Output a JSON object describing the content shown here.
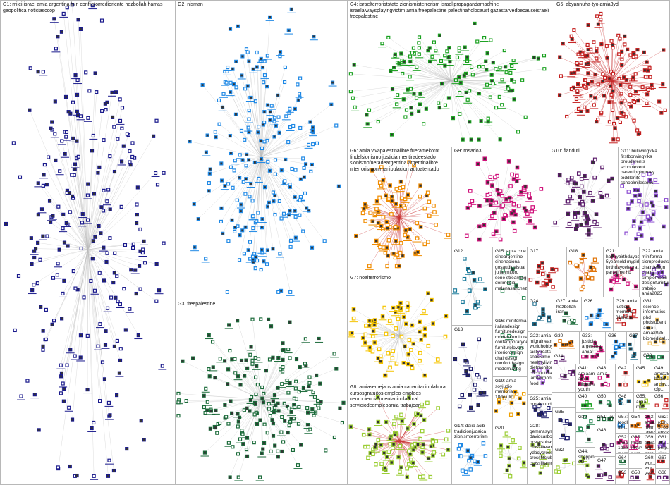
{
  "groups": {
    "G1": {
      "label": "G1: milei israel amia argentina lnln conflictomedioriente hezbollah hamas geopolitica noticiasccop",
      "color": "#1a1a8c",
      "nodes": 260
    },
    "G2": {
      "label": "G2: nisman",
      "color": "#1e88e5",
      "nodes": 230
    },
    "G3": {
      "label": "G3: freepalestine",
      "color": "#1b6b3a",
      "nodes": 200
    },
    "G4": {
      "label": "G4: israelterroriststate zionismisterrorism israelipropagandamachine israelalwaysplayingvictim amia freepalestine palestinaholocaust gazastarvedbecauseisraeli freepalestine",
      "color": "#18a01e",
      "nodes": 140
    },
    "G5": {
      "label": "G5: abyannuha-tyo amia3yd",
      "color": "#c41e1e",
      "nodes": 150
    },
    "G6": {
      "label": "G6: amia vivapalestinalibre fueramekorot findelsionismo justicia mentiradeestado sionismofueradeargentina argentinalibre niterrorismonimanipulacion autoatentado",
      "color": "#f08c00",
      "nodes": 90
    },
    "G7": {
      "label": "G7: noalterrorismo",
      "color": "#f5c400",
      "nodes": 80
    },
    "G8": {
      "label": "G8: amiasemejaos amia capacitacionlaboral cursosgratuitos empleo empleos neurociencia orientacionlaboral serviciodeempleoamia trabajoar",
      "color": "#9acd32",
      "nodes": 90
    },
    "G9": {
      "label": "G9: rosario3",
      "color": "#d0107a",
      "nodes": 70
    },
    "G10": {
      "label": "G10: flanduti",
      "color": "#5a1a6a",
      "nodes": 50
    },
    "G11": {
      "label": "G11: bulliwingvika firstborwingvika prouderents schoolevent parentinglourney toddlerlife schoolmilestone",
      "color": "#8a4ad0",
      "nodes": 40
    },
    "G12": {
      "label": "G12",
      "color": "#1a7a9a",
      "nodes": 18
    },
    "G13": {
      "label": "G13",
      "color": "#1a1a6a",
      "nodes": 20
    },
    "G14": {
      "label": "G14: daiib acib tradicionjudaica zionismterrorism",
      "color": "#1e88e5",
      "nodes": 18
    },
    "G15": {
      "label": "G15: amia cine cineargentino cinenacional gosaudiovisual julianmitoro serie streaming dorimedia malenasanchez",
      "color": "#2e8b57",
      "nodes": 8
    },
    "G16": {
      "label": "G16: miniforma italiandesign furnituredesign modernfurniture contemporaryde... furniturelovers interiordesign chairdesign comfortdesign modernliving",
      "color": "#2e8b57",
      "nodes": 6
    },
    "G17": {
      "label": "G17",
      "color": "#c41e1e",
      "nodes": 14
    },
    "G18": {
      "label": "G18",
      "color": "#e07000",
      "nodes": 16
    },
    "G19": {
      "label": "G19: amia soyjudio memoria 18dejulio",
      "color": "#f0a000",
      "nodes": 14
    },
    "G20": {
      "label": "G20",
      "color": "#9acd32",
      "nodes": 14
    },
    "G21": {
      "label": "G21: happybirthdaybaby 5yearsold mygirl birthdaycelebrat... partytime hb",
      "color": "#d0107a",
      "nodes": 12
    },
    "G22": {
      "label": "G22: amia miniforma sicmproducts chairdesign chairs simplomobili designfurniture trabajo amia2025 personasmayo...",
      "color": "#8a4ad0",
      "nodes": 8
    },
    "G23": {
      "label": "G23: amia migraineama... worldhobbyday tastytreats snacktime healthyliving dietmonitor... coconutcrackers jamfermont... food",
      "color": "#b070e0",
      "nodes": 10
    },
    "G24": {
      "label": "G24",
      "color": "#1a6a8a",
      "nodes": 10
    },
    "G25": {
      "label": "G25: amia porelmundo",
      "color": "#1a1a6a",
      "nodes": 10
    },
    "G26": {
      "label": "G26",
      "color": "#1e88e5",
      "nodes": 10
    },
    "G27": {
      "label": "G27: amia hezbollah iran",
      "color": "#1b6b3a",
      "nodes": 6
    },
    "G28": {
      "label": "G28: gemmasym... davidcarbo ocearsubast... crossfiteam ydacycrossf... crossfitclub crossfitamo...",
      "color": "#9acd32",
      "nodes": 8
    },
    "G29": {
      "label": "G29: amia justicia memoria 31años",
      "color": "#c41e1e",
      "nodes": 8
    },
    "G30": {
      "label": "G30",
      "color": "#e07000",
      "nodes": 8
    },
    "G31": {
      "label": "G31: science informatics phd phdstudent amia amia2025 biomedical...",
      "color": "#f0c060",
      "nodes": 6
    },
    "G32": {
      "label": "G32",
      "color": "#9acd32",
      "nodes": 6
    },
    "G33": {
      "label": "G33: justicia argentina amia",
      "color": "#d0107a",
      "nodes": 8
    },
    "G34": {
      "label": "G34",
      "color": "#5a1a6a",
      "nodes": 8
    },
    "G35": {
      "label": "G35",
      "color": "#1a1a6a",
      "nodes": 8
    },
    "G36": {
      "label": "G36",
      "color": "#1e88e5",
      "nodes": 8
    },
    "G37": {
      "label": "G37",
      "color": "#1a6a8a",
      "nodes": 6
    },
    "G38": {
      "label": "G38",
      "color": "#2e8b57",
      "nodes": 6
    },
    "G39": {
      "label": "G39",
      "color": "#2e8b57",
      "nodes": 6
    },
    "G40": {
      "label": "G40",
      "color": "#18a01e",
      "nodes": 6
    },
    "G41": {
      "label": "G41: amiaam amia iniciativa youth neuroscience",
      "color": "#d0107a",
      "nodes": 6
    },
    "G42": {
      "label": "G42",
      "color": "#c41e1e",
      "nodes": 5
    },
    "G43": {
      "label": "G43: amia",
      "color": "#d0107a",
      "nodes": 5
    },
    "G44": {
      "label": "G44: shopping sel",
      "color": "#9acd32",
      "nodes": 5
    },
    "G45": {
      "label": "G45",
      "color": "#f0c000",
      "nodes": 5
    },
    "G46": {
      "label": "G46",
      "color": "#5a1a6a",
      "nodes": 5
    },
    "G47": {
      "label": "G47",
      "color": "#5a1a6a",
      "nodes": 5
    },
    "G48": {
      "label": "G48",
      "color": "#1a6a8a",
      "nodes": 5
    },
    "G49": {
      "label": "G49: amia25 baltim... archiv... cfp...",
      "color": "#f0c000",
      "nodes": 5
    },
    "G50": {
      "label": "G50",
      "color": "#2e8b57",
      "nodes": 4
    },
    "G51": {
      "label": "G51: joy",
      "color": "#1b6b3a",
      "nodes": 4
    },
    "G52": {
      "label": "G52: amia 1ddej... memo...",
      "color": "#d0107a",
      "nodes": 4
    },
    "G53": {
      "label": "G53",
      "color": "#c41e1e",
      "nodes": 4
    },
    "G54": {
      "label": "G54",
      "color": "#e07000",
      "nodes": 4
    },
    "G55": {
      "label": "G55: amia milei",
      "color": "#9acd32",
      "nodes": 4
    },
    "G56": {
      "label": "G56",
      "color": "#c41e1e",
      "nodes": 4
    },
    "G57": {
      "label": "G57: foodla... fish...",
      "color": "#1e88e5",
      "nodes": 4
    },
    "G58": {
      "label": "G58",
      "color": "#5a1a6a",
      "nodes": 4
    },
    "G59": {
      "label": "G59: amia... argi... para...",
      "color": "#c41e1e",
      "nodes": 4
    },
    "G60": {
      "label": "G60: wor... wor... wor...",
      "color": "#c41e1e",
      "nodes": 4
    },
    "G61": {
      "label": "G61: alta... perp... sitar...",
      "color": "#8a4ad0",
      "nodes": 4
    },
    "G62": {
      "label": "G62: rosh... 5786 uthde...",
      "color": "#e07000",
      "nodes": 4
    },
    "G63": {
      "label": "G63: amia... mem... uthha...",
      "color": "#d0107a",
      "nodes": 4
    },
    "G64": {
      "label": "G64",
      "color": "#1b6b3a",
      "nodes": 4
    },
    "G65": {
      "label": "G65: healthy... luxury... para...",
      "color": "#d0107a",
      "nodes": 4
    },
    "G66": {
      "label": "G66",
      "color": "#5a1a6a",
      "nodes": 4
    },
    "G67": {
      "label": "G67",
      "color": "#c41e1e",
      "nodes": 4
    }
  }
}
